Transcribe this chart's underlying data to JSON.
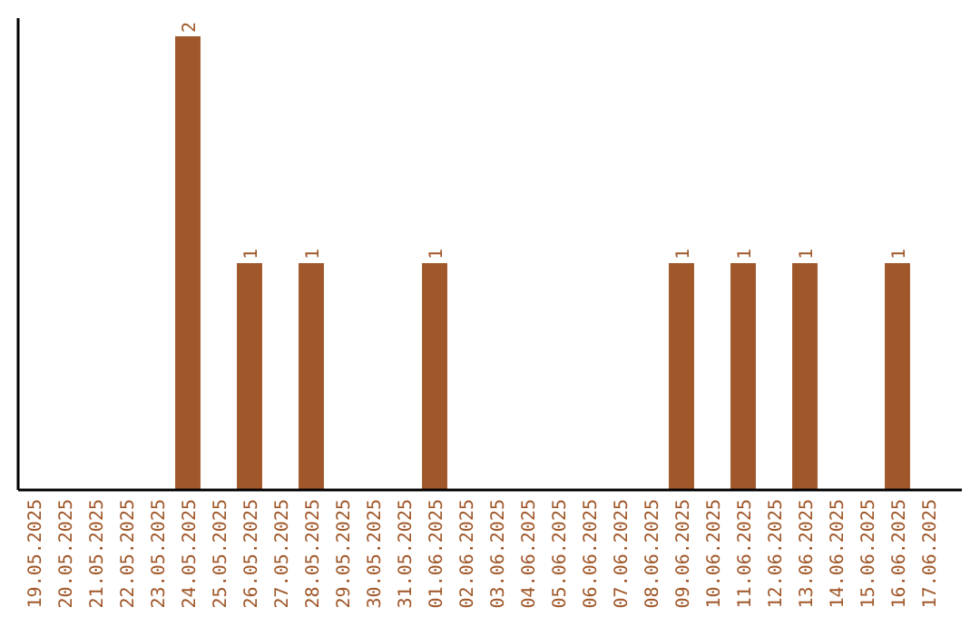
{
  "chart_data": {
    "type": "bar",
    "categories": [
      "19.05.2025",
      "20.05.2025",
      "21.05.2025",
      "22.05.2025",
      "23.05.2025",
      "24.05.2025",
      "25.05.2025",
      "26.05.2025",
      "27.05.2025",
      "28.05.2025",
      "29.05.2025",
      "30.05.2025",
      "31.05.2025",
      "01.06.2025",
      "02.06.2025",
      "03.06.2025",
      "04.06.2025",
      "05.06.2025",
      "06.06.2025",
      "07.06.2025",
      "08.06.2025",
      "09.06.2025",
      "10.06.2025",
      "11.06.2025",
      "12.06.2025",
      "13.06.2025",
      "14.06.2025",
      "15.06.2025",
      "16.06.2025",
      "17.06.2025"
    ],
    "values": [
      0,
      0,
      0,
      0,
      0,
      2,
      0,
      1,
      0,
      1,
      0,
      0,
      0,
      1,
      0,
      0,
      0,
      0,
      0,
      0,
      0,
      1,
      0,
      1,
      0,
      1,
      0,
      0,
      1,
      0
    ],
    "value_labels": [
      null,
      null,
      null,
      null,
      null,
      "2",
      null,
      "1",
      null,
      "1",
      null,
      null,
      null,
      "1",
      null,
      null,
      null,
      null,
      null,
      null,
      null,
      "1",
      null,
      "1",
      null,
      "1",
      null,
      null,
      "1",
      null
    ],
    "color": "#a0582a",
    "ylim": [
      0,
      2.08
    ],
    "tick_labels": "x"
  }
}
